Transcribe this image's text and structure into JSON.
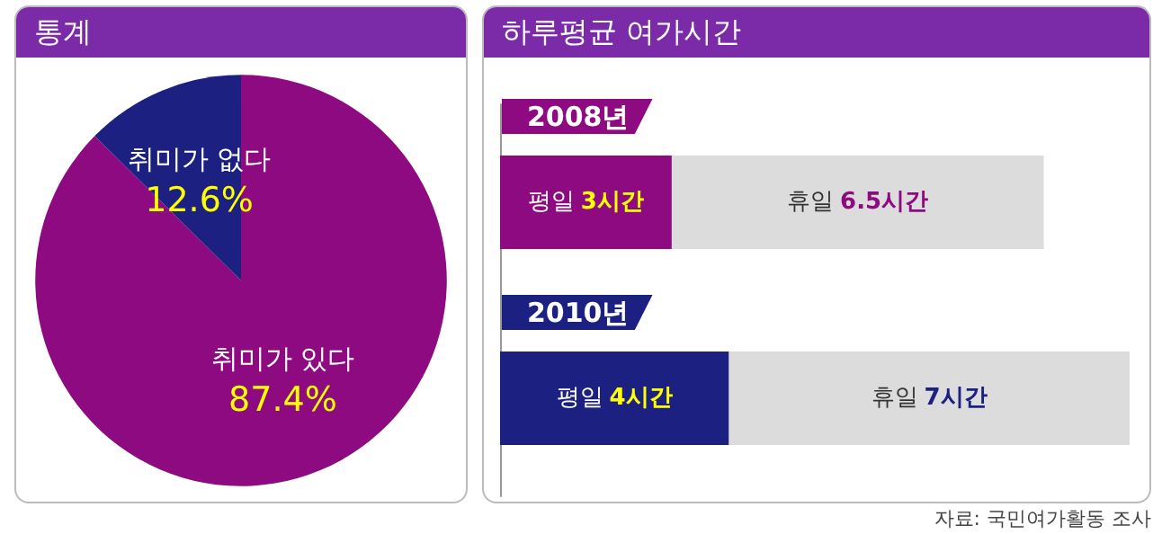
{
  "chart_data": [
    {
      "type": "pie",
      "title": "통계",
      "categories": [
        "취미가 있다",
        "취미가 없다"
      ],
      "values": [
        87.4,
        12.6
      ],
      "colors": [
        "#8e0a80",
        "#1c2080"
      ],
      "value_labels": [
        "87.4%",
        "12.6%"
      ]
    },
    {
      "type": "bar",
      "title": "하루평균 여가시간",
      "orientation": "horizontal",
      "stacked": true,
      "categories": [
        "2008년",
        "2010년"
      ],
      "series": [
        {
          "name": "평일",
          "colors": [
            "#8e0a80",
            "#1c2080"
          ],
          "values": [
            3,
            4
          ],
          "value_labels": [
            "3시간",
            "4시간"
          ]
        },
        {
          "name": "휴일",
          "color": "#dcdcdc",
          "values": [
            6.5,
            7
          ],
          "value_labels": [
            "6.5시간",
            "7시간"
          ]
        }
      ],
      "tick_labels": "y",
      "annotations": [
        "자료: 국민여가활동 조사"
      ]
    }
  ]
}
